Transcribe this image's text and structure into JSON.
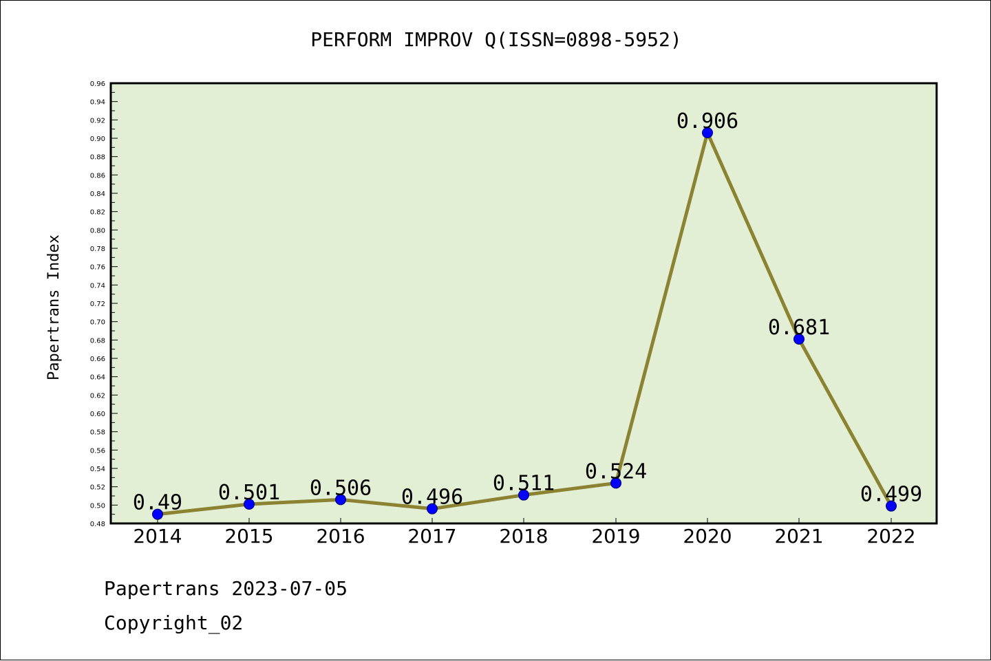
{
  "chart_data": {
    "type": "line",
    "title": "PERFORM IMPROV Q(ISSN=0898-5952)",
    "xlabel": "",
    "ylabel": "Papertrans Index",
    "categories": [
      "2014",
      "2015",
      "2016",
      "2017",
      "2018",
      "2019",
      "2020",
      "2021",
      "2022"
    ],
    "series": [
      {
        "values": [
          0.49,
          0.501,
          0.506,
          0.496,
          0.511,
          0.524,
          0.906,
          0.681,
          0.499
        ],
        "labels": [
          "0.49",
          "0.501",
          "0.506",
          "0.496",
          "0.511",
          "0.524",
          "0.906",
          "0.681",
          "0.499"
        ],
        "line_color": "#8b8232",
        "marker_color": "#0000ff"
      }
    ],
    "ylim": [
      0.48,
      0.96
    ],
    "yticks": [
      "0.48",
      "0.50",
      "0.52",
      "0.54",
      "0.56",
      "0.58",
      "0.60",
      "0.62",
      "0.64",
      "0.66",
      "0.68",
      "0.70",
      "0.72",
      "0.74",
      "0.76",
      "0.78",
      "0.80",
      "0.82",
      "0.84",
      "0.86",
      "0.88",
      "0.90",
      "0.92",
      "0.94",
      "0.96"
    ],
    "plot_background": "#e2efd4",
    "grid": false,
    "legend": "none"
  },
  "footer": {
    "line1": "Papertrans 2023-07-05",
    "line2": "Copyright_02"
  }
}
